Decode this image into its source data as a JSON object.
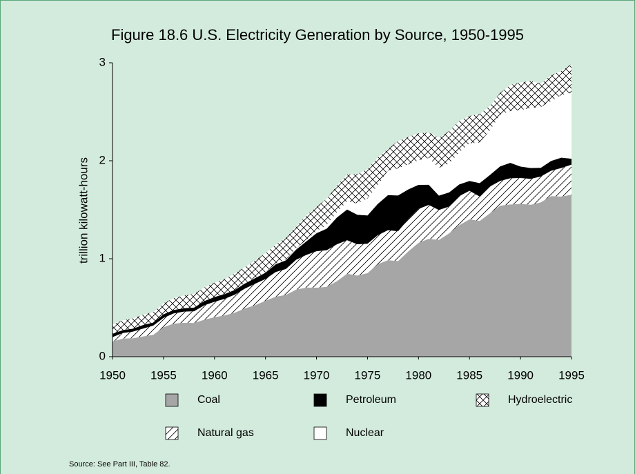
{
  "chart_data": {
    "type": "stacked_area",
    "title": "Figure 18.6  U.S. Electricity Generation by Source, 1950-1995",
    "y_label": "trillion kilowatt-hours",
    "source": "Source: See Part III, Table 82.",
    "x": [
      1950,
      1951,
      1952,
      1953,
      1954,
      1955,
      1956,
      1957,
      1958,
      1959,
      1960,
      1961,
      1962,
      1963,
      1964,
      1965,
      1966,
      1967,
      1968,
      1969,
      1970,
      1971,
      1972,
      1973,
      1974,
      1975,
      1976,
      1977,
      1978,
      1979,
      1980,
      1981,
      1982,
      1983,
      1984,
      1985,
      1986,
      1987,
      1988,
      1989,
      1990,
      1991,
      1992,
      1993,
      1994,
      1995
    ],
    "xlim": [
      1950,
      1995
    ],
    "xticks": [
      1950,
      1955,
      1960,
      1965,
      1970,
      1975,
      1980,
      1985,
      1990,
      1995
    ],
    "ylim": [
      0,
      3
    ],
    "yticks": [
      0,
      1,
      2,
      3
    ],
    "series": [
      {
        "name": "Coal",
        "color": "#a6a6a6",
        "pattern": "solid",
        "values": [
          0.155,
          0.185,
          0.188,
          0.207,
          0.224,
          0.301,
          0.338,
          0.346,
          0.344,
          0.378,
          0.403,
          0.422,
          0.45,
          0.494,
          0.526,
          0.571,
          0.613,
          0.63,
          0.685,
          0.706,
          0.704,
          0.713,
          0.771,
          0.848,
          0.828,
          0.853,
          0.944,
          0.985,
          0.976,
          1.075,
          1.162,
          1.203,
          1.192,
          1.259,
          1.342,
          1.402,
          1.386,
          1.464,
          1.541,
          1.554,
          1.56,
          1.551,
          1.576,
          1.639,
          1.635,
          1.653
        ]
      },
      {
        "name": "Natural gas",
        "color": "#000000",
        "pattern": "diagonal",
        "values": [
          0.045,
          0.057,
          0.068,
          0.08,
          0.094,
          0.095,
          0.104,
          0.114,
          0.12,
          0.147,
          0.158,
          0.169,
          0.184,
          0.202,
          0.22,
          0.222,
          0.251,
          0.265,
          0.304,
          0.333,
          0.373,
          0.374,
          0.376,
          0.341,
          0.32,
          0.3,
          0.295,
          0.306,
          0.305,
          0.329,
          0.346,
          0.346,
          0.305,
          0.274,
          0.297,
          0.292,
          0.249,
          0.273,
          0.253,
          0.267,
          0.264,
          0.264,
          0.264,
          0.259,
          0.291,
          0.307
        ]
      },
      {
        "name": "Petroleum",
        "color": "#000000",
        "pattern": "solid",
        "values": [
          0.034,
          0.029,
          0.03,
          0.037,
          0.031,
          0.037,
          0.035,
          0.035,
          0.038,
          0.043,
          0.048,
          0.049,
          0.048,
          0.052,
          0.057,
          0.065,
          0.079,
          0.089,
          0.104,
          0.138,
          0.184,
          0.22,
          0.274,
          0.314,
          0.301,
          0.289,
          0.32,
          0.358,
          0.365,
          0.304,
          0.246,
          0.206,
          0.147,
          0.144,
          0.12,
          0.1,
          0.137,
          0.118,
          0.149,
          0.158,
          0.117,
          0.111,
          0.089,
          0.1,
          0.106,
          0.061
        ]
      },
      {
        "name": "Nuclear",
        "color": "#ffffff",
        "pattern": "solid",
        "values": [
          0,
          0,
          0,
          0,
          0,
          0,
          0,
          0,
          0,
          0,
          0.001,
          0.002,
          0.002,
          0.003,
          0.003,
          0.004,
          0.006,
          0.008,
          0.013,
          0.014,
          0.022,
          0.038,
          0.054,
          0.083,
          0.114,
          0.173,
          0.191,
          0.251,
          0.276,
          0.255,
          0.251,
          0.273,
          0.283,
          0.294,
          0.328,
          0.384,
          0.414,
          0.455,
          0.527,
          0.529,
          0.577,
          0.613,
          0.619,
          0.61,
          0.64,
          0.673
        ]
      },
      {
        "name": "Hydroelectric",
        "color": "#000000",
        "pattern": "cross",
        "values": [
          0.096,
          0.1,
          0.105,
          0.105,
          0.107,
          0.113,
          0.121,
          0.13,
          0.14,
          0.138,
          0.146,
          0.15,
          0.168,
          0.165,
          0.177,
          0.194,
          0.195,
          0.222,
          0.222,
          0.25,
          0.248,
          0.266,
          0.273,
          0.272,
          0.301,
          0.3,
          0.284,
          0.22,
          0.28,
          0.28,
          0.276,
          0.261,
          0.309,
          0.332,
          0.321,
          0.281,
          0.291,
          0.25,
          0.223,
          0.265,
          0.28,
          0.276,
          0.24,
          0.265,
          0.244,
          0.293
        ]
      }
    ]
  }
}
